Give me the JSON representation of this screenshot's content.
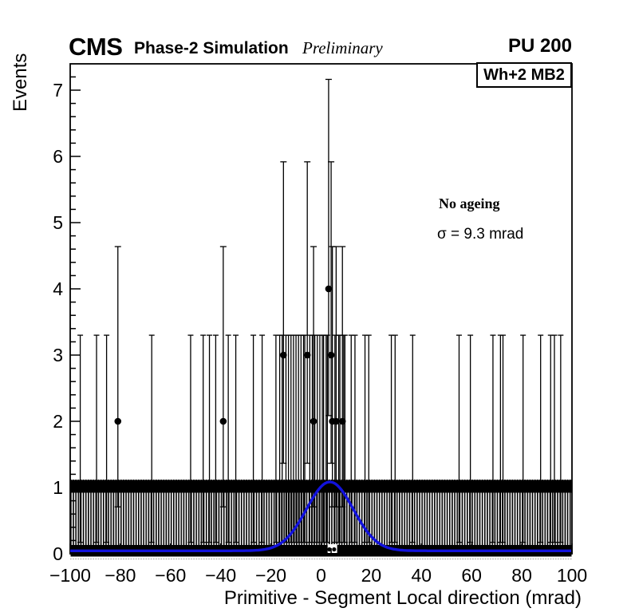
{
  "header": {
    "experiment": "CMS",
    "label": "Phase-2 Simulation",
    "status": "Preliminary",
    "pileup": "PU 200"
  },
  "plot_box_label": "Wh+2 MB2",
  "annotation": {
    "line1": "No ageing",
    "line2": "σ = 9.3 mrad"
  },
  "chart_data": {
    "type": "histogram+fit",
    "xlabel": "Primitive - Segment Local direction (mrad)",
    "ylabel": "Events",
    "x_range": [
      -100,
      100
    ],
    "y_range": [
      0,
      7.4
    ],
    "x_ticks": [
      -100,
      -80,
      -60,
      -40,
      -20,
      0,
      20,
      40,
      60,
      80,
      100
    ],
    "y_ticks": [
      0,
      1,
      2,
      3,
      4,
      5,
      6,
      7
    ],
    "y_minor_step": 0.2,
    "x_minor_step": 4,
    "bin_width_mrad": 1,
    "marker_color": "#000000",
    "points_ge2": [
      {
        "x": -81,
        "y": 2
      },
      {
        "x": -39,
        "y": 2
      },
      {
        "x": -3,
        "y": 2
      },
      {
        "x": 4.5,
        "y": 2
      },
      {
        "x": 6,
        "y": 2
      },
      {
        "x": 8.5,
        "y": 2
      },
      {
        "x": -15,
        "y": 3
      },
      {
        "x": -5.5,
        "y": 3
      },
      {
        "x": 4,
        "y": 3
      },
      {
        "x": 3,
        "y": 4
      }
    ],
    "one_count_bar_x": [
      -96,
      -89.5,
      -85.5,
      -67.5,
      -52,
      -47,
      -44.5,
      -42,
      -37,
      -34,
      -27,
      -23.5,
      -18,
      -16.5,
      -15.5,
      -14,
      -13,
      -12,
      -11,
      -10,
      -9,
      -8,
      -7,
      -6.5,
      -4.5,
      -3.5,
      -2.5,
      -1.5,
      -0.5,
      0.5,
      1,
      2,
      2.5,
      5.5,
      7,
      7.5,
      9,
      9.5,
      12,
      13.5,
      17.5,
      19,
      28,
      29.5,
      36.5,
      55,
      59.5,
      68.5,
      71.5,
      72.5,
      80.5,
      87.5,
      91.5,
      93,
      95.5
    ],
    "dense_band": {
      "note": "remaining bins hold 0 or 1 entries; markers at y=1 form a solid band, markers at y=0 form the bottom band",
      "band_value": 1,
      "comb_top": 1.12,
      "zero_band_gap_x": [
        2.6,
        6.4
      ],
      "gap_dots_x": [
        3.3,
        5.2
      ]
    },
    "poisson_errors": {
      "1": [
        0.173,
        3.3
      ],
      "2": [
        0.708,
        4.638
      ],
      "3": [
        1.367,
        5.918
      ],
      "4": [
        2.086,
        7.163
      ]
    },
    "fit": {
      "shape": "gaussian",
      "amplitude": 1.04,
      "mean": 3.5,
      "sigma_mrad": 9.3,
      "offset": 0.045,
      "color": "#1212dd"
    }
  }
}
